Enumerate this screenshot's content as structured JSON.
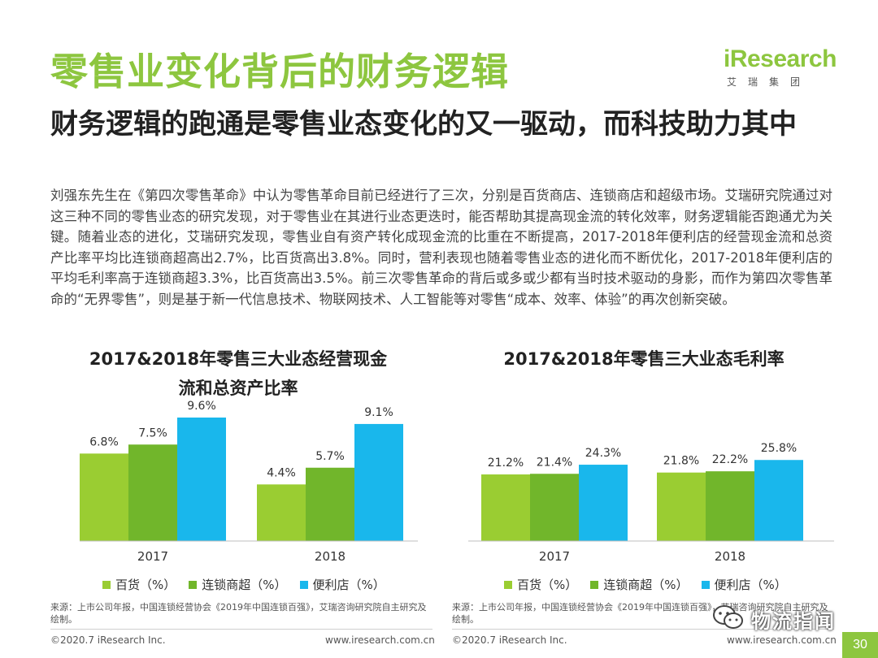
{
  "header": {
    "title": "零售业变化背后的财务逻辑",
    "logo_text": "iResearch",
    "logo_sub": "艾瑞集团",
    "subtitle": "财务逻辑的跑通是零售业态变化的又一驱动，而科技助力其中"
  },
  "body_text": "刘强东先生在《第四次零售革命》中认为零售革命目前已经进行了三次，分别是百货商店、连锁商店和超级市场。艾瑞研究院通过对这三种不同的零售业态的研究发现，对于零售业在其进行业态更迭时，能否帮助其提高现金流的转化效率，财务逻辑能否跑通尤为关键。随着业态的进化，艾瑞研究发现，零售业自有资产转化成现金流的比重在不断提高，2017-2018年便利店的经营现金流和总资产比率平均比连锁商超高出2.7%，比百货高出3.8%。同时，营利表现也随着零售业态的进化而不断优化，2017-2018年便利店的平均毛利率高于连锁商超3.3%，比百货高出3.5%。前三次零售革命的背后或多或少都有当时技术驱动的身影，而作为第四次零售革命的“无界零售”，则是基于新一代信息技术、物联网技术、人工智能等对零售“成本、效率、体验”的再次创新突破。",
  "colors": {
    "green_light": "#9acd32",
    "green_mid": "#71b62b",
    "cyan": "#19b7ec",
    "accent": "#8dc63f"
  },
  "chart_data": [
    {
      "type": "bar",
      "title": "2017&2018年零售三大业态经营现金流和总资产比率",
      "categories": [
        "2017",
        "2018"
      ],
      "series": [
        {
          "name": "百货（%）",
          "values": [
            6.8,
            4.4
          ],
          "labels": [
            "6.8%",
            "4.4%"
          ]
        },
        {
          "name": "连锁商超（%）",
          "values": [
            7.5,
            5.7
          ],
          "labels": [
            "7.5%",
            "5.7%"
          ]
        },
        {
          "name": "便利店（%）",
          "values": [
            9.6,
            9.1
          ],
          "labels": [
            "9.6%",
            "9.1%"
          ]
        }
      ],
      "ylim": [
        0,
        12
      ],
      "grid": false,
      "legend": "bottom",
      "source": "来源：上市公司年报，中国连锁经营协会《2019年中国连锁百强》，艾瑞咨询研究院自主研究及绘制。"
    },
    {
      "type": "bar",
      "title": "2017&2018年零售三大业态毛利率",
      "categories": [
        "2017",
        "2018"
      ],
      "series": [
        {
          "name": "百货（%）",
          "values": [
            21.2,
            21.8
          ],
          "labels": [
            "21.2%",
            "21.8%"
          ]
        },
        {
          "name": "连锁商超（%）",
          "values": [
            21.4,
            22.2
          ],
          "labels": [
            "21.4%",
            "22.2%"
          ]
        },
        {
          "name": "便利店（%）",
          "values": [
            24.3,
            25.8
          ],
          "labels": [
            "24.3%",
            "25.8%"
          ]
        }
      ],
      "ylim": [
        0,
        30
      ],
      "grid": false,
      "legend": "bottom",
      "source": "来源：上市公司年报，中国连锁经营协会《2019年中国连锁百强》，艾瑞咨询研究院自主研究及绘制。"
    }
  ],
  "footer": {
    "copyright_left": "©2020.7 iResearch Inc.",
    "url_left": "www.iresearch.com.cn",
    "copyright_right": "©2020.7 iResearch Inc.",
    "url_right": "www.iresearch.com.cn",
    "wechat_label": "物流指闻",
    "wechat_icon": "wechat-icon",
    "page_number": "30"
  }
}
